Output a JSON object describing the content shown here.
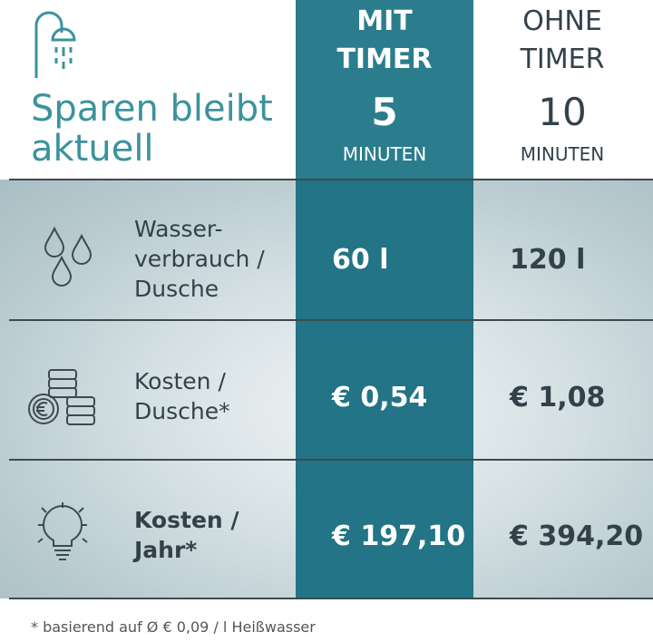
{
  "header": {
    "title_lines": [
      "Sparen bleibt",
      "aktuell"
    ],
    "columns": [
      {
        "label_lines": [
          "MIT",
          "TIMER"
        ],
        "number": "5",
        "unit": "MINUTEN"
      },
      {
        "label_lines": [
          "OHNE",
          "TIMER"
        ],
        "number": "10",
        "unit": "MINUTEN"
      }
    ]
  },
  "table": {
    "rows": [
      {
        "label_lines": [
          "Wasser-",
          "verbrauch /",
          "Dusche"
        ],
        "values": [
          "60 l",
          "120 l"
        ]
      },
      {
        "label_lines": [
          "Kosten /",
          "Dusche*"
        ],
        "values": [
          "€ 0,54",
          "€ 1,08"
        ]
      },
      {
        "label_lines": [
          "Kosten /",
          "Jahr*"
        ],
        "values": [
          "€ 197,10",
          "€ 394,20"
        ]
      }
    ]
  },
  "footnote": "* basierend auf Ø € 0,09 / l Heißwasser"
}
